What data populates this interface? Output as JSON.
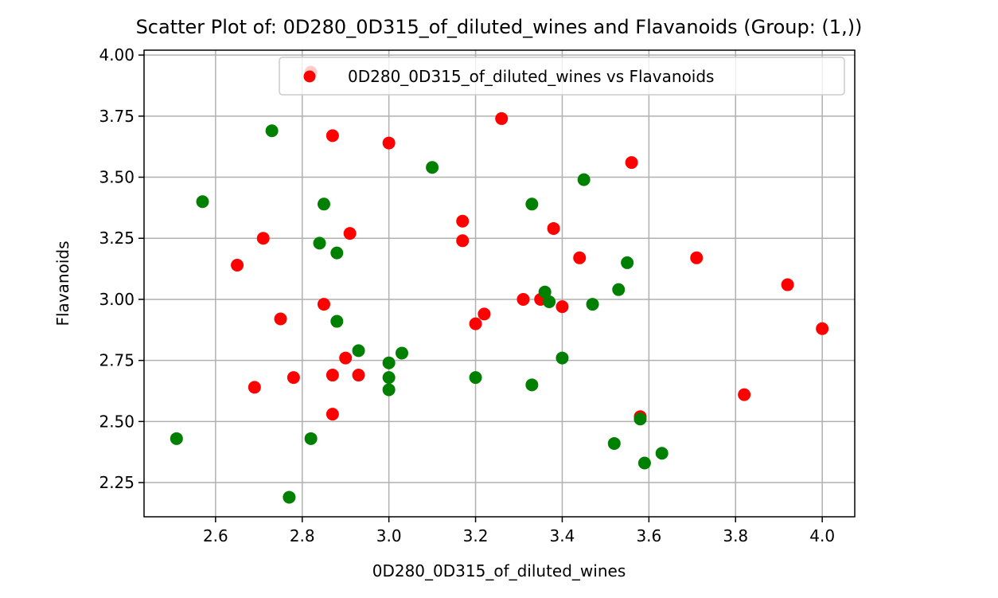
{
  "chart_data": {
    "type": "scatter",
    "title": "Scatter Plot of: 0D280_0D315_of_diluted_wines and Flavanoids (Group: (1,))",
    "xlabel": "0D280_0D315_of_diluted_wines",
    "ylabel": "Flavanoids",
    "xlim": [
      2.435,
      4.075
    ],
    "ylim": [
      2.11,
      4.02
    ],
    "xticks": [
      "2.6",
      "2.8",
      "3.0",
      "3.2",
      "3.4",
      "3.6",
      "3.8",
      "4.0"
    ],
    "yticks": [
      "2.25",
      "2.50",
      "2.75",
      "3.00",
      "3.25",
      "3.50",
      "3.75",
      "4.00"
    ],
    "grid": true,
    "legend": {
      "placement": "top-right",
      "label": "0D280_0D315_of_diluted_wines vs Flavanoids"
    },
    "series": [
      {
        "name": "0D280_0D315_of_diluted_wines vs Flavanoids",
        "color": "#ff0000",
        "points": [
          [
            2.82,
            3.93
          ],
          [
            3.26,
            3.74
          ],
          [
            2.87,
            3.67
          ],
          [
            3.0,
            3.64
          ],
          [
            3.56,
            3.56
          ],
          [
            3.17,
            3.32
          ],
          [
            3.38,
            3.29
          ],
          [
            2.91,
            3.27
          ],
          [
            2.71,
            3.25
          ],
          [
            3.17,
            3.24
          ],
          [
            3.44,
            3.17
          ],
          [
            3.71,
            3.17
          ],
          [
            2.65,
            3.14
          ],
          [
            3.92,
            3.06
          ],
          [
            3.31,
            3.0
          ],
          [
            3.35,
            3.0
          ],
          [
            2.85,
            2.98
          ],
          [
            3.4,
            2.97
          ],
          [
            3.22,
            2.94
          ],
          [
            2.75,
            2.92
          ],
          [
            3.2,
            2.9
          ],
          [
            4.0,
            2.88
          ],
          [
            2.9,
            2.76
          ],
          [
            2.87,
            2.69
          ],
          [
            2.93,
            2.69
          ],
          [
            2.78,
            2.68
          ],
          [
            2.69,
            2.64
          ],
          [
            3.82,
            2.61
          ],
          [
            2.87,
            2.53
          ],
          [
            3.58,
            2.52
          ]
        ]
      },
      {
        "color": "#008000",
        "points": [
          [
            2.73,
            3.69
          ],
          [
            3.1,
            3.54
          ],
          [
            3.45,
            3.49
          ],
          [
            2.57,
            3.4
          ],
          [
            2.85,
            3.39
          ],
          [
            3.33,
            3.39
          ],
          [
            2.84,
            3.23
          ],
          [
            2.88,
            3.19
          ],
          [
            3.55,
            3.15
          ],
          [
            3.53,
            3.04
          ],
          [
            3.36,
            3.03
          ],
          [
            3.37,
            2.99
          ],
          [
            3.47,
            2.98
          ],
          [
            2.88,
            2.91
          ],
          [
            2.93,
            2.79
          ],
          [
            3.03,
            2.78
          ],
          [
            3.4,
            2.76
          ],
          [
            3.0,
            2.74
          ],
          [
            3.0,
            2.68
          ],
          [
            3.2,
            2.68
          ],
          [
            3.33,
            2.65
          ],
          [
            3.0,
            2.63
          ],
          [
            3.58,
            2.51
          ],
          [
            2.51,
            2.43
          ],
          [
            2.82,
            2.43
          ],
          [
            3.52,
            2.41
          ],
          [
            3.63,
            2.37
          ],
          [
            3.59,
            2.33
          ],
          [
            2.77,
            2.19
          ]
        ]
      }
    ]
  }
}
